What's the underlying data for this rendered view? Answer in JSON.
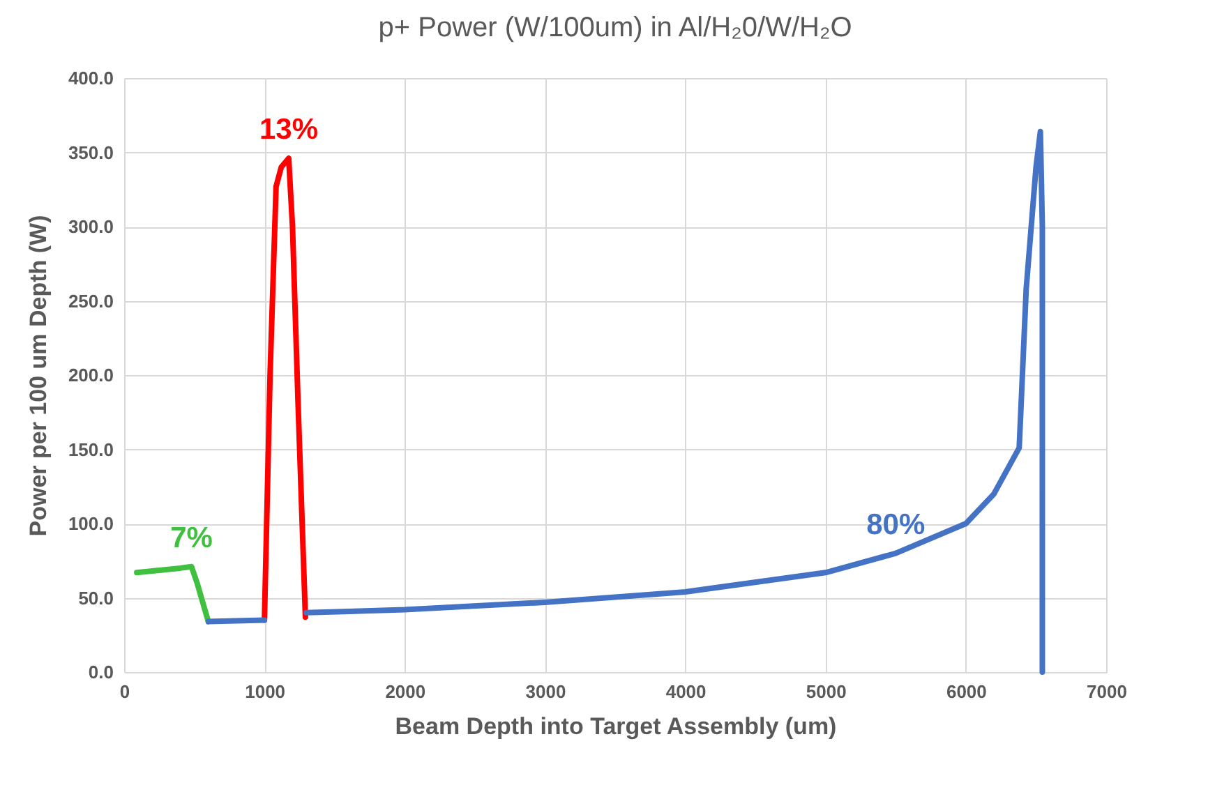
{
  "chart_data": {
    "type": "line",
    "title": "p+ Power (W/100um) in Al/H₂0/W/H₂O",
    "xlabel": "Beam Depth into Target Assembly (um)",
    "ylabel": "Power per 100 um Depth (W)",
    "xlim": [
      0,
      7000
    ],
    "xticks": [
      0,
      1000,
      2000,
      3000,
      4000,
      5000,
      6000,
      7000
    ],
    "ylim": [
      0,
      400
    ],
    "yticks": [
      {
        "value": 0,
        "label": "0.0"
      },
      {
        "value": 50,
        "label": "50.0"
      },
      {
        "value": 100,
        "label": "100.0"
      },
      {
        "value": 150,
        "label": "150.0"
      },
      {
        "value": 200,
        "label": "200.0"
      },
      {
        "value": 250,
        "label": "250.0"
      },
      {
        "value": 300,
        "label": "300.0"
      },
      {
        "value": 350,
        "label": "350.0"
      },
      {
        "value": 400,
        "label": "400.0"
      }
    ],
    "grid": true,
    "series": [
      {
        "name": "7%",
        "color": "#3fc13f",
        "x": [
          90,
          400,
          480,
          520,
          600
        ],
        "values": [
          67,
          70,
          71,
          60,
          34
        ]
      },
      {
        "name": "13%",
        "color": "#ff0000",
        "x": [
          1000,
          1040,
          1083,
          1120,
          1173,
          1200,
          1240,
          1292
        ],
        "values": [
          35,
          200,
          327,
          340,
          346,
          300,
          180,
          37
        ]
      },
      {
        "name": "80%",
        "color": "#4472c4",
        "x": [
          600,
          1000,
          1150,
          1300,
          2000,
          3000,
          4000,
          5000,
          5500,
          6000,
          6200,
          6380,
          6430,
          6500,
          6531,
          6545,
          6545
        ],
        "values": [
          34,
          35,
          null,
          40,
          42,
          47,
          54,
          67,
          80,
          100,
          120,
          151,
          258,
          340,
          364,
          300,
          0
        ]
      }
    ]
  }
}
